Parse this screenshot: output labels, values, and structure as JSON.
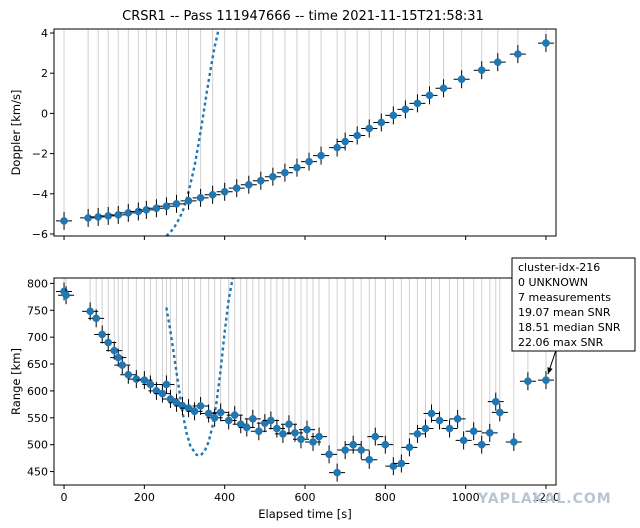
{
  "title": "CRSR1 -- Pass 111947666 -- time 2021-11-15T21:58:31",
  "watermark": "YAPLAKAL.COM",
  "colors": {
    "marker": "#1f77b4",
    "edge": "#000000",
    "grid": "#d0d0d0"
  },
  "chart_data": [
    {
      "type": "scatter",
      "name": "doppler",
      "xlabel": "",
      "ylabel": "Doppler [km/s]",
      "xlim": [
        -25,
        1225
      ],
      "ylim": [
        -6.1,
        4.2
      ],
      "xticks": [
        0,
        200,
        400,
        600,
        800,
        1000,
        1200
      ],
      "yticks": [
        -6,
        -4,
        -2,
        0,
        2,
        4
      ],
      "ytick_labels": [
        "−6",
        "−4",
        "−2",
        "0",
        "2",
        "4"
      ],
      "measurements": [
        [
          0,
          -5.35
        ],
        [
          60,
          -5.2
        ],
        [
          85,
          -5.15
        ],
        [
          110,
          -5.1
        ],
        [
          135,
          -5.05
        ],
        [
          160,
          -4.95
        ],
        [
          185,
          -4.88
        ],
        [
          205,
          -4.8
        ],
        [
          230,
          -4.72
        ],
        [
          255,
          -4.62
        ],
        [
          280,
          -4.5
        ],
        [
          310,
          -4.35
        ],
        [
          340,
          -4.2
        ],
        [
          370,
          -4.05
        ],
        [
          400,
          -3.9
        ],
        [
          430,
          -3.72
        ],
        [
          460,
          -3.55
        ],
        [
          490,
          -3.35
        ],
        [
          520,
          -3.15
        ],
        [
          550,
          -2.95
        ],
        [
          580,
          -2.7
        ],
        [
          610,
          -2.4
        ],
        [
          640,
          -2.1
        ],
        [
          680,
          -1.7
        ],
        [
          700,
          -1.4
        ],
        [
          730,
          -1.1
        ],
        [
          760,
          -0.75
        ],
        [
          790,
          -0.45
        ],
        [
          820,
          -0.1
        ],
        [
          850,
          0.2
        ],
        [
          880,
          0.5
        ],
        [
          910,
          0.9
        ],
        [
          945,
          1.25
        ],
        [
          990,
          1.7
        ],
        [
          1040,
          2.15
        ],
        [
          1080,
          2.55
        ],
        [
          1130,
          2.95
        ],
        [
          1200,
          3.5
        ]
      ],
      "model_curve": [
        [
          255,
          -6.1
        ],
        [
          265,
          -5.9
        ],
        [
          275,
          -5.65
        ],
        [
          285,
          -5.3
        ],
        [
          295,
          -4.9
        ],
        [
          305,
          -4.3
        ],
        [
          315,
          -3.5
        ],
        [
          325,
          -2.6
        ],
        [
          335,
          -1.5
        ],
        [
          345,
          -0.3
        ],
        [
          355,
          1.0
        ],
        [
          365,
          2.2
        ],
        [
          375,
          3.3
        ],
        [
          385,
          4.2
        ]
      ]
    },
    {
      "type": "scatter",
      "name": "range",
      "xlabel": "Elapsed time [s]",
      "ylabel": "Range [km]",
      "xlim": [
        -25,
        1225
      ],
      "ylim": [
        425,
        810
      ],
      "xticks": [
        0,
        200,
        400,
        600,
        800,
        1000,
        1200
      ],
      "yticks": [
        450,
        500,
        550,
        600,
        650,
        700,
        750,
        800
      ],
      "measurements": [
        [
          0,
          785
        ],
        [
          5,
          778
        ],
        [
          65,
          748
        ],
        [
          80,
          735
        ],
        [
          95,
          705
        ],
        [
          110,
          690
        ],
        [
          125,
          675
        ],
        [
          135,
          662
        ],
        [
          145,
          648
        ],
        [
          160,
          630
        ],
        [
          180,
          622
        ],
        [
          200,
          620
        ],
        [
          215,
          612
        ],
        [
          230,
          600
        ],
        [
          245,
          595
        ],
        [
          255,
          612
        ],
        [
          265,
          585
        ],
        [
          280,
          578
        ],
        [
          295,
          572
        ],
        [
          310,
          568
        ],
        [
          325,
          562
        ],
        [
          340,
          572
        ],
        [
          360,
          558
        ],
        [
          375,
          550
        ],
        [
          390,
          560
        ],
        [
          410,
          545
        ],
        [
          425,
          555
        ],
        [
          440,
          538
        ],
        [
          455,
          532
        ],
        [
          470,
          548
        ],
        [
          485,
          525
        ],
        [
          500,
          540
        ],
        [
          515,
          545
        ],
        [
          530,
          530
        ],
        [
          545,
          520
        ],
        [
          560,
          538
        ],
        [
          575,
          522
        ],
        [
          590,
          510
        ],
        [
          605,
          528
        ],
        [
          620,
          505
        ],
        [
          635,
          515
        ],
        [
          660,
          482
        ],
        [
          680,
          448
        ],
        [
          700,
          490
        ],
        [
          720,
          500
        ],
        [
          740,
          490
        ],
        [
          760,
          472
        ],
        [
          775,
          515
        ],
        [
          800,
          500
        ],
        [
          820,
          460
        ],
        [
          840,
          465
        ],
        [
          860,
          495
        ],
        [
          880,
          520
        ],
        [
          900,
          530
        ],
        [
          915,
          558
        ],
        [
          935,
          545
        ],
        [
          960,
          530
        ],
        [
          980,
          548
        ],
        [
          995,
          508
        ],
        [
          1020,
          525
        ],
        [
          1040,
          500
        ],
        [
          1060,
          522
        ],
        [
          1075,
          580
        ],
        [
          1085,
          560
        ],
        [
          1120,
          505
        ],
        [
          1155,
          618
        ],
        [
          1200,
          620
        ]
      ],
      "model_curve": [
        [
          255,
          755
        ],
        [
          265,
          710
        ],
        [
          275,
          660
        ],
        [
          285,
          610
        ],
        [
          295,
          560
        ],
        [
          305,
          522
        ],
        [
          315,
          497
        ],
        [
          330,
          481
        ],
        [
          340,
          480
        ],
        [
          350,
          488
        ],
        [
          360,
          505
        ],
        [
          370,
          535
        ],
        [
          380,
          580
        ],
        [
          390,
          640
        ],
        [
          400,
          710
        ],
        [
          410,
          770
        ],
        [
          420,
          810
        ]
      ]
    }
  ],
  "annotation": {
    "lines": [
      "cluster-idx-216",
      "0 UNKNOWN",
      "7 measurements",
      "19.07 mean SNR",
      "18.51 median SNR",
      "22.06 max SNR"
    ],
    "target": [
      1200,
      620
    ]
  }
}
